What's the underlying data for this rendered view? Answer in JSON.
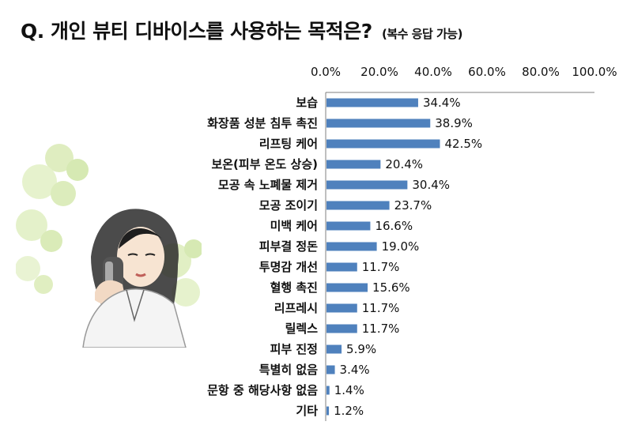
{
  "title": "Q. 개인 뷰티 디바이스를 사용하는 목적은?",
  "subtitle": "(복수 응답 가능)",
  "colors": {
    "bar": "#4f81bd",
    "axis": "#7f7f7f"
  },
  "chart_data": {
    "type": "bar",
    "orientation": "horizontal",
    "title": "Q. 개인 뷰티 디바이스를 사용하는 목적은?",
    "subtitle": "(복수 응답 가능)",
    "xlim": [
      0,
      100
    ],
    "x_ticks": [
      "0.0%",
      "20.0%",
      "40.0%",
      "60.0%",
      "80.0%",
      "100.0%"
    ],
    "x_tick_values": [
      0,
      20,
      40,
      60,
      80,
      100
    ],
    "grid": false,
    "legend": "none",
    "categories": [
      "보습",
      "화장품 성분 침투 촉진",
      "리프팅 케어",
      "보온(피부 온도 상승)",
      "모공 속 노폐물 제거",
      "모공 조이기",
      "미백 케어",
      "피부결 정돈",
      "투명감 개선",
      "혈행 촉진",
      "리프레시",
      "릴렉스",
      "피부 진정",
      "특별히 없음",
      "문항 중 해당사항 없음",
      "기타"
    ],
    "values": [
      34.4,
      38.9,
      42.5,
      20.4,
      30.4,
      23.7,
      16.6,
      19.0,
      11.7,
      15.6,
      11.7,
      11.7,
      5.9,
      3.4,
      1.4,
      1.2
    ],
    "value_labels": [
      "34.4%",
      "38.9%",
      "42.5%",
      "20.4%",
      "30.4%",
      "23.7%",
      "16.6%",
      "19.0%",
      "11.7%",
      "15.6%",
      "11.7%",
      "11.7%",
      "5.9%",
      "3.4%",
      "1.4%",
      "1.2%"
    ]
  }
}
